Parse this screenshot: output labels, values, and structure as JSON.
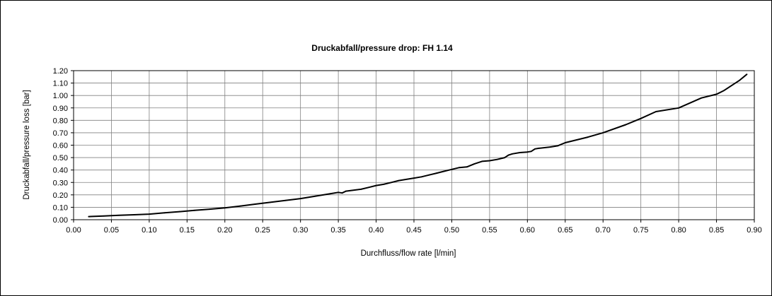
{
  "chart_data": {
    "type": "line",
    "title": "Druckabfall/pressure drop: FH 1.14",
    "xlabel": "Durchfluss/flow rate [l/min]",
    "ylabel": "Druckabfall/pressure loss [bar]",
    "xlim": [
      0,
      0.9
    ],
    "ylim": [
      0,
      1.2
    ],
    "xticks": [
      "0.00",
      "0.05",
      "0.10",
      "0.15",
      "0.20",
      "0.25",
      "0.30",
      "0.35",
      "0.40",
      "0.45",
      "0.50",
      "0.55",
      "0.60",
      "0.65",
      "0.70",
      "0.75",
      "0.80",
      "0.85",
      "0.90"
    ],
    "yticks": [
      "0.00",
      "0.10",
      "0.20",
      "0.30",
      "0.40",
      "0.50",
      "0.60",
      "0.70",
      "0.80",
      "0.90",
      "1.00",
      "1.10",
      "1.20"
    ],
    "grid": true,
    "line_color": "#000000",
    "series": [
      {
        "x": [
          0.02,
          0.04,
          0.06,
          0.08,
          0.1,
          0.12,
          0.14,
          0.16,
          0.18,
          0.2,
          0.22,
          0.24,
          0.26,
          0.28,
          0.3,
          0.31,
          0.32,
          0.34,
          0.35,
          0.355,
          0.36,
          0.38,
          0.39,
          0.4,
          0.41,
          0.42,
          0.43,
          0.45,
          0.46,
          0.47,
          0.48,
          0.49,
          0.5,
          0.51,
          0.52,
          0.53,
          0.54,
          0.55,
          0.56,
          0.57,
          0.575,
          0.58,
          0.59,
          0.6,
          0.605,
          0.61,
          0.615,
          0.63,
          0.64,
          0.65,
          0.68,
          0.7,
          0.73,
          0.75,
          0.77,
          0.8,
          0.83,
          0.85,
          0.86,
          0.87,
          0.88,
          0.89
        ],
        "y": [
          0.025,
          0.03,
          0.035,
          0.04,
          0.045,
          0.055,
          0.065,
          0.075,
          0.085,
          0.095,
          0.11,
          0.125,
          0.14,
          0.155,
          0.17,
          0.18,
          0.19,
          0.21,
          0.22,
          0.215,
          0.23,
          0.245,
          0.26,
          0.275,
          0.285,
          0.3,
          0.315,
          0.335,
          0.345,
          0.36,
          0.375,
          0.39,
          0.405,
          0.42,
          0.425,
          0.45,
          0.47,
          0.475,
          0.485,
          0.5,
          0.52,
          0.53,
          0.54,
          0.545,
          0.55,
          0.57,
          0.575,
          0.585,
          0.595,
          0.62,
          0.665,
          0.7,
          0.765,
          0.815,
          0.87,
          0.9,
          0.98,
          1.01,
          1.04,
          1.08,
          1.12,
          1.17
        ]
      }
    ]
  }
}
